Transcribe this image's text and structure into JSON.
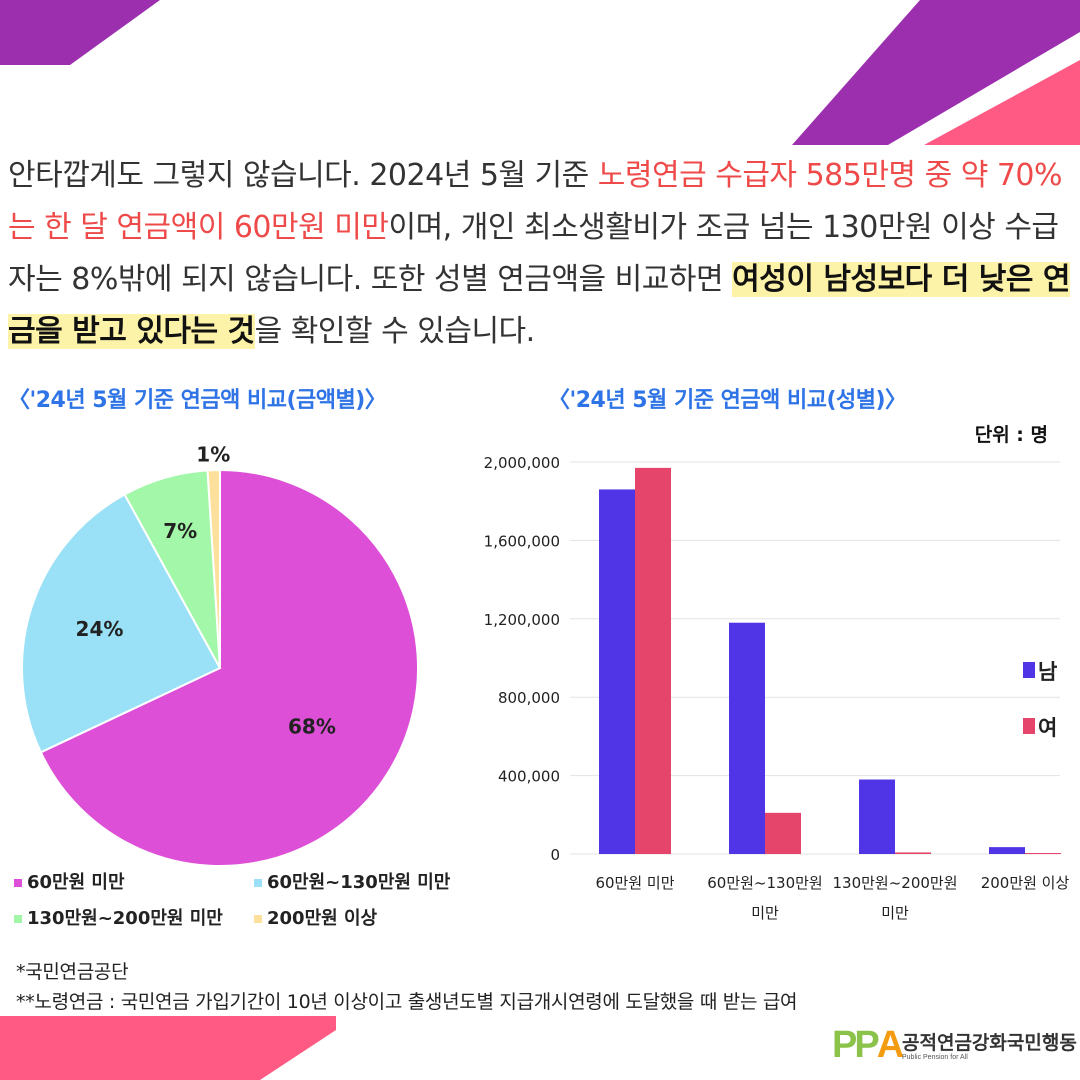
{
  "intro": {
    "p1": "안타깝게도 그렇지 않습니다. 2024년 5월 기준 ",
    "red1": "노령연금 수급자 585만명 중 약 70%는 한 달 연금액이 60만원 미만",
    "p2": "이며, 개인 최소생활비가 조금 넘는 130만원 이상 수급자는 8%밖에 되지 않습니다. 또한 성별 연금액을 비교하면 ",
    "highlight": "여성이 남성보다 더 낮은 연금을 받고 있다는 것",
    "p3": "을 확인할 수 있습니다."
  },
  "colors": {
    "accent_red": "#ef4a4a",
    "title_blue": "#2f74e6",
    "highlight_yellow": "#fdf3a8",
    "deco_purple": "#9b2fae",
    "deco_pink": "#ff5a84"
  },
  "pie_title": "〈'24년 5월 기준 연금액 비교(금액별)〉",
  "bar_title": "〈'24년 5월 기준 연금액 비교(성별)〉",
  "unit_label": "단위 : 명",
  "chart_data": [
    {
      "type": "pie",
      "title": "〈'24년 5월 기준 연금액 비교(금액별)〉",
      "slices": [
        {
          "label": "60만원 미만",
          "value": 68,
          "text": "68%",
          "color": "#dc4fd6"
        },
        {
          "label": "60만원~130만원 미만",
          "value": 24,
          "text": "24%",
          "color": "#9ae1f7"
        },
        {
          "label": "130만원~200만원 미만",
          "value": 7,
          "text": "7%",
          "color": "#a3f7a8"
        },
        {
          "label": "200만원 이상",
          "value": 1,
          "text": "1%",
          "color": "#fde09b"
        }
      ],
      "legend_position": "bottom"
    },
    {
      "type": "bar",
      "title": "〈'24년 5월 기준 연금액 비교(성별)〉",
      "categories": [
        "60만원 미만",
        "60만원~130만원 미만",
        "130만원~200만원 미만",
        "200만원 이상"
      ],
      "category_lines": [
        [
          "60만원 미만"
        ],
        [
          "60만원~130만원",
          "미만"
        ],
        [
          "130만원~200만원",
          "미만"
        ],
        [
          "200만원 이상"
        ]
      ],
      "series": [
        {
          "name": "남",
          "color": "#4f35e6",
          "values": [
            1860000,
            1180000,
            380000,
            35000
          ]
        },
        {
          "name": "여",
          "color": "#e6456b",
          "values": [
            1970000,
            210000,
            8000,
            1000
          ]
        }
      ],
      "ylim": [
        0,
        2000000
      ],
      "yticks": [
        0,
        400000,
        800000,
        1200000,
        1600000,
        2000000
      ],
      "ytick_labels": [
        "0",
        "400,000",
        "800,000",
        "1,200,000",
        "1,600,000",
        "2,000,000"
      ],
      "unit": "단위 : 명",
      "grid": true,
      "legend_position": "right"
    }
  ],
  "footnotes": [
    "*국민연금공단",
    "**노령연금 : 국민연금 가입기간이 10년 이상이고 출생년도별 지급개시연령에 도달했을 때 받는 급여"
  ],
  "logo": {
    "mark_p": "PP",
    "mark_a": "A",
    "name": "공적연금강화국민행동",
    "sub": "Public Pension for All"
  }
}
